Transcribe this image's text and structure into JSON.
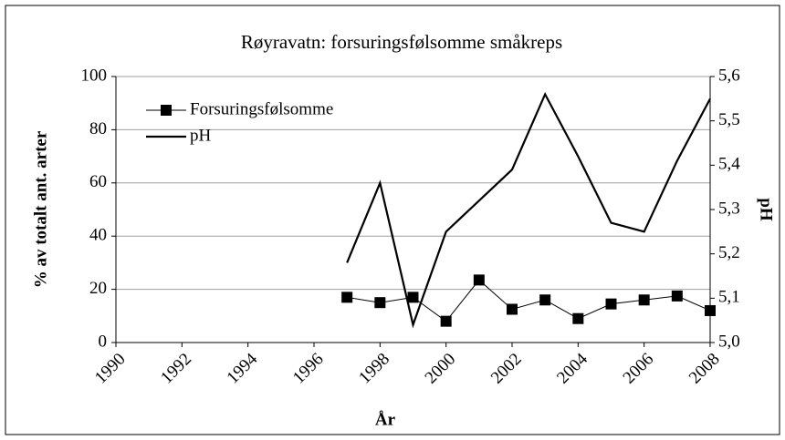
{
  "chart_data": {
    "type": "line",
    "title": "Røyravatn: forsuringsfølsomme småkreps",
    "xlabel": "År",
    "ylabel": "% av totalt ant. arter",
    "y2label": "pH",
    "x": [
      1997,
      1998,
      1999,
      2000,
      2001,
      2002,
      2003,
      2004,
      2005,
      2006,
      2007,
      2008
    ],
    "series": [
      {
        "name": "Forsuringsfølsomme",
        "color": "#000000",
        "marker": "square",
        "values": [
          17,
          15,
          17,
          8,
          23.5,
          12.5,
          16,
          9,
          14.5,
          16,
          17.5,
          12
        ]
      },
      {
        "name": "pH",
        "color": "#000000",
        "axis": "y2",
        "values": [
          5.18,
          5.36,
          5.04,
          5.25,
          5.32,
          5.39,
          5.56,
          5.42,
          5.27,
          5.25,
          5.41,
          5.55
        ]
      }
    ],
    "xlim": [
      1990,
      2008
    ],
    "xticks": [
      1990,
      1992,
      1994,
      1996,
      1998,
      2000,
      2002,
      2004,
      2006,
      2008
    ],
    "ylim": [
      0,
      100
    ],
    "yticks": [
      0,
      20,
      40,
      60,
      80,
      100
    ],
    "y2lim": [
      5.0,
      5.6
    ],
    "y2ticks": [
      {
        "value": 5.0,
        "label": "5,0"
      },
      {
        "value": 5.1,
        "label": "5,1"
      },
      {
        "value": 5.2,
        "label": "5,2"
      },
      {
        "value": 5.3,
        "label": "5,3"
      },
      {
        "value": 5.4,
        "label": "5,4"
      },
      {
        "value": 5.5,
        "label": "5,5"
      },
      {
        "value": 5.6,
        "label": "5,6"
      }
    ],
    "grid": true,
    "legend": "upper left"
  }
}
